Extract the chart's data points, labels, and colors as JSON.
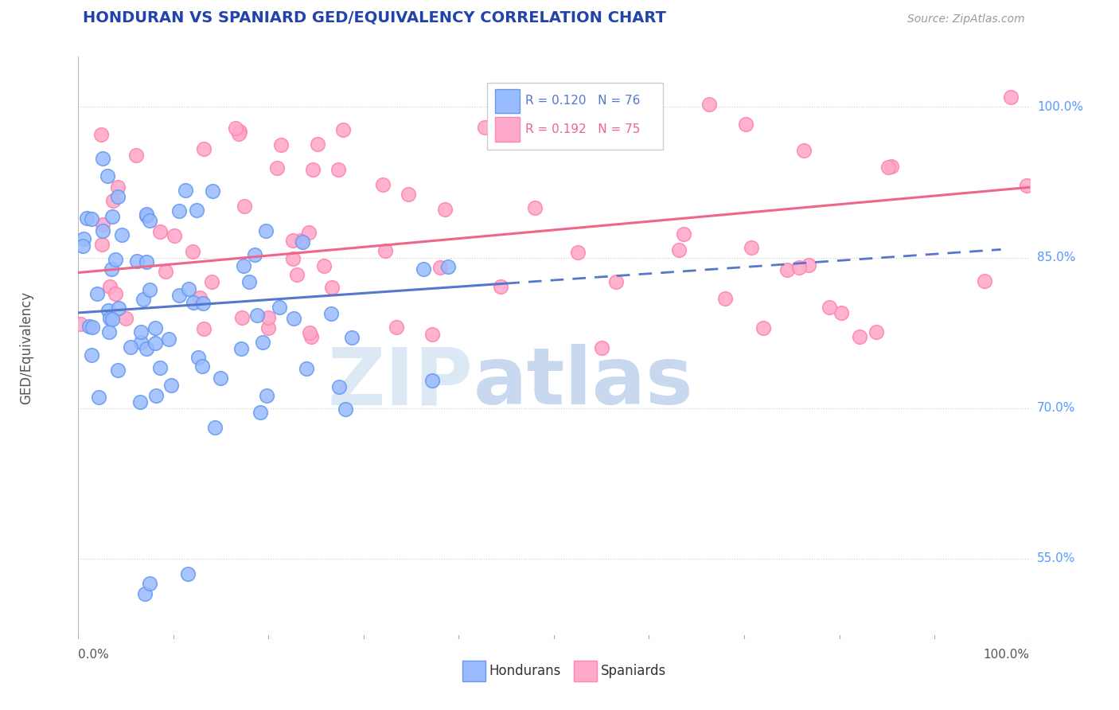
{
  "title": "HONDURAN VS SPANIARD GED/EQUIVALENCY CORRELATION CHART",
  "source": "Source: ZipAtlas.com",
  "ylabel": "GED/Equivalency",
  "xlim": [
    0.0,
    1.0
  ],
  "ylim": [
    0.47,
    1.05
  ],
  "ytick_positions": [
    0.55,
    0.7,
    0.85,
    1.0
  ],
  "ytick_labels": [
    "55.0%",
    "70.0%",
    "85.0%",
    "100.0%"
  ],
  "color_honduran": "#99bbff",
  "color_spaniard": "#ffaacc",
  "color_honduran_edge": "#6699ee",
  "color_spaniard_edge": "#ff88aa",
  "color_honduran_line": "#5577cc",
  "color_spaniard_line": "#ee6688",
  "background_color": "#ffffff",
  "grid_color": "#cccccc",
  "title_color": "#2244aa",
  "axis_label_color": "#555555",
  "ytick_color": "#5599ff",
  "source_color": "#999999",
  "legend_border_color": "#cccccc",
  "watermark_zip_color": "#dde8f5",
  "watermark_atlas_color": "#c8d8ee",
  "hon_line_solid_end": 0.45,
  "spa_line_solid_end": 1.0,
  "hon_intercept": 0.795,
  "hon_slope": 0.065,
  "spa_intercept": 0.835,
  "spa_slope": 0.085
}
